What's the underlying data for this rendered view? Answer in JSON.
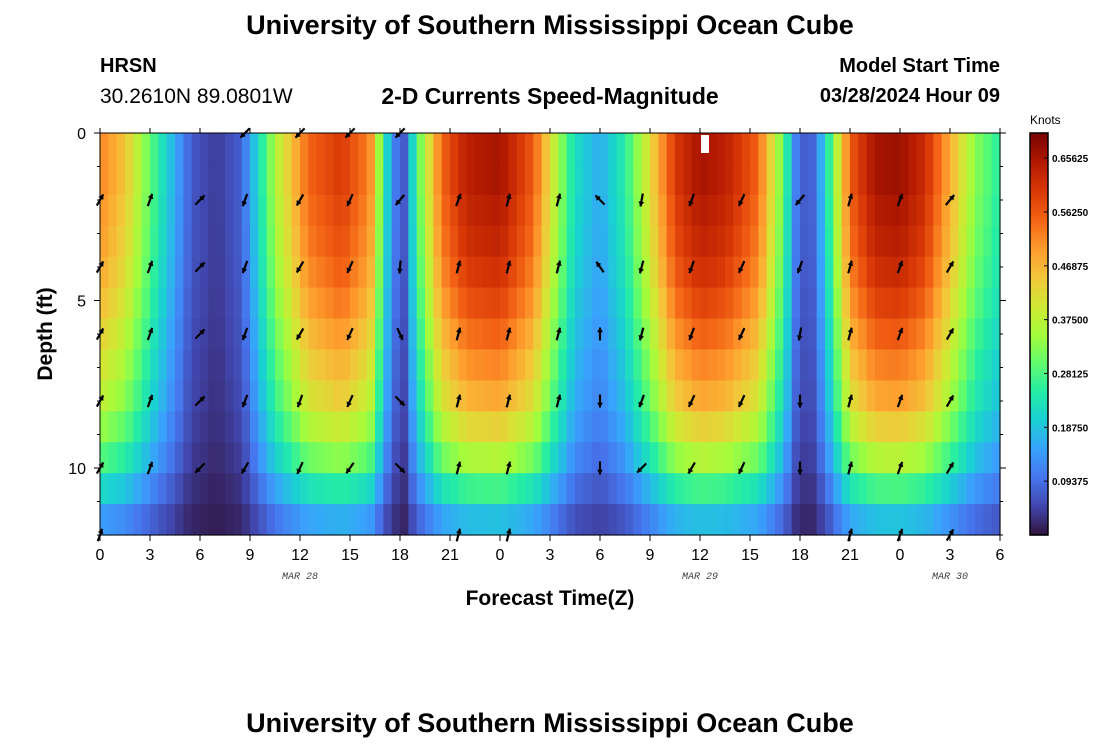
{
  "header": {
    "title": "University of Southern Mississippi Ocean Cube",
    "station": "HRSN",
    "coords": "30.2610N  89.0801W",
    "subtitle": "2-D Currents Speed-Magnitude",
    "model_start_label": "Model Start Time",
    "model_start_value": "03/28/2024 Hour 09"
  },
  "footer": {
    "title": "University of Southern Mississippi Ocean Cube"
  },
  "colors": {
    "colormap": [
      "#30123b",
      "#4145ab",
      "#4675ed",
      "#39a2fc",
      "#1bcfd4",
      "#24eca6",
      "#61fc6c",
      "#a4fc3b",
      "#d1e834",
      "#f3c63a",
      "#fe9b2d",
      "#f36315",
      "#d93806",
      "#b11901",
      "#7a0402"
    ],
    "arrow": "#000000",
    "frame": "#000000"
  },
  "chart_data": {
    "type": "heatmap",
    "title": "2-D Currents Speed-Magnitude",
    "xlabel": "Forecast Time(Z)",
    "ylabel": "Depth (ft)",
    "x_range_hours": [
      0,
      54
    ],
    "ylim": [
      0,
      12
    ],
    "y_inverted": true,
    "x_tick_hours": [
      0,
      3,
      6,
      9,
      12,
      15,
      18,
      21,
      24,
      27,
      30,
      33,
      36,
      39,
      42,
      45,
      48,
      51,
      54
    ],
    "x_tick_labels": [
      "0",
      "3",
      "6",
      "9",
      "12",
      "15",
      "18",
      "21",
      "0",
      "3",
      "6",
      "9",
      "12",
      "15",
      "18",
      "21",
      "0",
      "3",
      "6"
    ],
    "date_labels": [
      {
        "hour": 12,
        "text": "MAR 28"
      },
      {
        "hour": 36,
        "text": "MAR 29"
      },
      {
        "hour": 51,
        "text": "MAR 30"
      }
    ],
    "y_ticks": [
      0,
      5,
      10
    ],
    "y_tick_labels": [
      "0",
      "5",
      "10"
    ],
    "colorbar": {
      "unit": "Knots",
      "min": 0,
      "max": 0.7,
      "ticks": [
        "0.65625",
        "0.56250",
        "0.46875",
        "0.37500",
        "0.28125",
        "0.18750",
        "0.09375"
      ],
      "tick_values": [
        0.65625,
        0.5625,
        0.46875,
        0.375,
        0.28125,
        0.1875,
        0.09375
      ]
    },
    "speed_profile": {
      "description": "surface speed (knots) vs forecast hour",
      "hours": [
        0,
        1.5,
        3.5,
        5.5,
        7,
        8.5,
        10.5,
        12.5,
        14.5,
        16.2,
        16.8,
        17.5,
        18.2,
        19,
        20.5,
        22,
        24,
        26,
        27.5,
        28.5,
        30,
        31.5,
        33,
        34.5,
        36,
        37.5,
        39.5,
        41,
        41.8,
        42.6,
        43.5,
        45,
        46.5,
        48,
        49.5,
        51,
        52.5,
        54
      ],
      "speeds": [
        0.52,
        0.45,
        0.25,
        0.07,
        0.04,
        0.08,
        0.36,
        0.55,
        0.6,
        0.52,
        0.33,
        0.13,
        0.06,
        0.28,
        0.55,
        0.64,
        0.66,
        0.56,
        0.35,
        0.22,
        0.16,
        0.25,
        0.42,
        0.6,
        0.66,
        0.64,
        0.55,
        0.3,
        0.1,
        0.06,
        0.2,
        0.56,
        0.66,
        0.67,
        0.62,
        0.48,
        0.33,
        0.25
      ]
    },
    "depth_attenuation": [
      1.0,
      1.0,
      0.98,
      0.96,
      0.93,
      0.89,
      0.84,
      0.79,
      0.74,
      0.66,
      0.56,
      0.42,
      0.28
    ],
    "vector_rows_depth_ft": [
      0,
      2,
      4,
      6,
      8,
      10,
      12
    ],
    "vector_columns_hours": [
      0,
      3,
      6,
      8.7,
      12,
      15,
      18,
      21.5,
      24.5,
      27.5,
      30,
      32.5,
      35.5,
      38.5,
      42,
      45,
      48,
      51
    ],
    "vector_direction_deg": [
      [
        null,
        null,
        null,
        225,
        225,
        225,
        225,
        null,
        null,
        null,
        null,
        null,
        null,
        null,
        null,
        null,
        null,
        null
      ],
      [
        30,
        20,
        45,
        200,
        210,
        205,
        220,
        20,
        15,
        15,
        315,
        190,
        200,
        205,
        220,
        15,
        20,
        40
      ],
      [
        30,
        20,
        45,
        200,
        210,
        205,
        185,
        15,
        15,
        15,
        325,
        195,
        200,
        205,
        200,
        15,
        20,
        30
      ],
      [
        30,
        20,
        45,
        200,
        210,
        205,
        155,
        15,
        15,
        15,
        0,
        195,
        200,
        205,
        190,
        15,
        20,
        30
      ],
      [
        30,
        20,
        45,
        200,
        200,
        205,
        135,
        15,
        15,
        15,
        180,
        200,
        205,
        205,
        180,
        15,
        20,
        30
      ],
      [
        30,
        20,
        225,
        210,
        205,
        215,
        135,
        15,
        15,
        null,
        180,
        225,
        210,
        205,
        180,
        15,
        20,
        30
      ],
      [
        20,
        null,
        null,
        null,
        null,
        null,
        null,
        15,
        15,
        null,
        null,
        null,
        null,
        null,
        null,
        15,
        20,
        30
      ]
    ],
    "markers": [
      {
        "hour": 36.3,
        "depth_ft": 0.3,
        "shape": "white-bar"
      }
    ]
  }
}
